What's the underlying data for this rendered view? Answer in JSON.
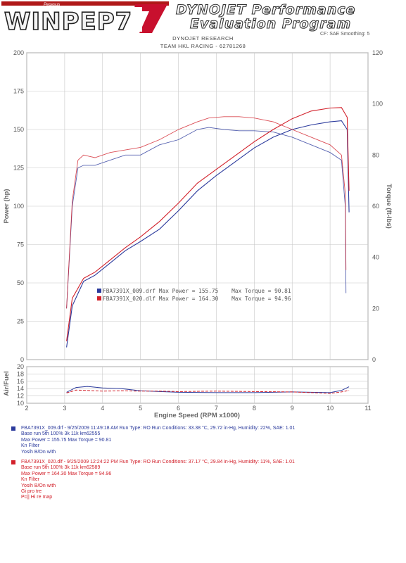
{
  "header": {
    "logo_small": "Pegasus",
    "logo_main": "WINPEP7",
    "title_line1": "DYNOJET Performance",
    "title_line2": "Evaluation Program",
    "subtitle_line1": "DYNOJET RESEARCH",
    "subtitle_line2": "TEAM HKL RACING - 62781268",
    "settings_text": "CF: SAE  Smoothing: 5"
  },
  "colors": {
    "run1": "#2b3a9c",
    "run2": "#d2202a",
    "grid": "#c8c8c8",
    "frame": "#888888"
  },
  "chart_data": [
    {
      "type": "line",
      "xlabel": "Engine Speed (RPM x1000)",
      "ylabel": "Power (hp)",
      "y2label": "Torque (ft-lbs)",
      "xlim": [
        2,
        11
      ],
      "ylim": [
        0,
        200
      ],
      "y2lim": [
        0,
        120
      ],
      "x_ticks": [
        "2",
        "3",
        "4",
        "5",
        "6",
        "7",
        "8",
        "9",
        "10",
        "11"
      ],
      "y_ticks": [
        "0",
        "25",
        "50",
        "75",
        "100",
        "125",
        "150",
        "175",
        "200"
      ],
      "y2_ticks": [
        "0",
        "20",
        "40",
        "60",
        "80",
        "100",
        "120"
      ],
      "grid": true,
      "legend": {
        "placement": "center-left",
        "entries": [
          {
            "text": "FBA7391X_009.drf Max Power = 155.75    Max Torque = 90.81",
            "color": "#2b3a9c"
          },
          {
            "text": "FBA7391X_020.dlf Max Power = 164.30    Max Torque = 94.96",
            "color": "#d2202a"
          }
        ]
      },
      "series": [
        {
          "name": "FBA7391X_009.drf",
          "metric": "power",
          "color": "#2b3a9c",
          "x": [
            3.05,
            3.2,
            3.5,
            3.8,
            4.2,
            4.6,
            5.0,
            5.5,
            6.0,
            6.5,
            7.0,
            7.5,
            8.0,
            8.5,
            9.0,
            9.5,
            10.0,
            10.3,
            10.45,
            10.5
          ],
          "y": [
            8,
            35,
            51,
            55,
            63,
            71,
            77,
            85,
            97,
            110,
            120,
            129,
            138,
            145,
            150,
            153,
            155,
            155.7,
            150,
            96
          ]
        },
        {
          "name": "FBA7391X_009.drf",
          "metric": "torque",
          "color": "#2b3a9c",
          "x": [
            3.05,
            3.2,
            3.35,
            3.5,
            3.8,
            4.2,
            4.6,
            5.0,
            5.5,
            6.0,
            6.5,
            6.8,
            7.2,
            7.6,
            8.0,
            8.5,
            9.0,
            9.5,
            10.0,
            10.3,
            10.4,
            10.42
          ],
          "y": [
            20,
            60,
            75,
            76,
            76,
            78,
            80,
            80,
            84,
            86,
            90,
            90.8,
            90,
            89.5,
            89.5,
            89,
            87,
            84,
            81,
            78,
            60,
            26
          ]
        },
        {
          "name": "FBA7391X_020.dlf",
          "metric": "power",
          "color": "#d2202a",
          "x": [
            3.05,
            3.2,
            3.5,
            3.8,
            4.2,
            4.6,
            5.0,
            5.5,
            6.0,
            6.5,
            7.0,
            7.5,
            8.0,
            8.5,
            9.0,
            9.5,
            10.0,
            10.3,
            10.45,
            10.5
          ],
          "y": [
            12,
            40,
            53,
            57,
            65,
            73,
            80,
            90,
            102,
            115,
            124,
            133,
            142,
            150,
            157,
            162,
            164,
            164.3,
            158,
            110
          ]
        },
        {
          "name": "FBA7391X_020.dlf",
          "metric": "torque",
          "color": "#d2202a",
          "x": [
            3.05,
            3.2,
            3.35,
            3.5,
            3.8,
            4.2,
            4.6,
            5.0,
            5.5,
            6.0,
            6.5,
            6.8,
            7.2,
            7.6,
            8.0,
            8.5,
            9.0,
            9.5,
            10.0,
            10.3,
            10.4,
            10.42
          ],
          "y": [
            20,
            62,
            78,
            80,
            79,
            81,
            82,
            83,
            86,
            90,
            93,
            94.5,
            95,
            95,
            94.5,
            93,
            90,
            87,
            84,
            80,
            65,
            35
          ]
        }
      ]
    },
    {
      "type": "line",
      "ylabel": "Air/Fuel",
      "xlim": [
        2,
        11
      ],
      "ylim": [
        10,
        20
      ],
      "y_ticks": [
        "10",
        "12",
        "14",
        "16",
        "18",
        "20"
      ],
      "grid": true,
      "series": [
        {
          "name": "FBA7391X_009.drf",
          "color": "#2b3a9c",
          "x": [
            3.05,
            3.3,
            3.6,
            4.0,
            4.5,
            5.0,
            5.5,
            6.0,
            7.0,
            8.0,
            9.0,
            9.5,
            10.0,
            10.3,
            10.5
          ],
          "y": [
            13.0,
            14.3,
            14.6,
            14.2,
            14.0,
            13.4,
            13.2,
            13.0,
            12.9,
            12.9,
            13.1,
            13.0,
            12.9,
            13.5,
            14.5
          ]
        },
        {
          "name": "FBA7391X_020.dlf",
          "color": "#d2202a",
          "x": [
            3.05,
            3.3,
            3.6,
            4.0,
            4.5,
            5.0,
            5.5,
            6.0,
            7.0,
            8.0,
            9.0,
            9.5,
            10.0,
            10.3,
            10.5
          ],
          "y": [
            12.8,
            13.6,
            13.5,
            13.3,
            13.4,
            13.3,
            13.3,
            13.2,
            13.3,
            13.2,
            13.1,
            12.9,
            12.7,
            13.1,
            13.5
          ]
        }
      ]
    }
  ],
  "runs": [
    {
      "color": "#2b3a9c",
      "line1": "FBA7391X_009.drf - 9/25/2009 11:49:18 AM  Run Type: RO  Run Conditions: 33.38 °C, 29.72 in-Hg,  Humidity:  22%, SAE: 1.01",
      "notes": [
        "Base  run 5th 100% 3k 11k km62555",
        "Max Power = 155.75  Max Torque = 90.81",
        "Kn Filter",
        "Yosih B/On with"
      ]
    },
    {
      "color": "#d2202a",
      "line1": "FBA7391X_020.dlf - 9/25/2009 12:24:22 PM  Run Type: RO  Run Conditions: 37.17 °C, 29.84 in-Hg,  Humidity:  11%, SAE: 1.01",
      "notes": [
        "Base  run 5th 100% 3k 11k km62589",
        "Max Power = 164.30  Max Torque = 94.96",
        "Kn Filter",
        "Yosih B/On with",
        "Gi pro tre",
        "Pc|| Hi re map"
      ]
    }
  ]
}
